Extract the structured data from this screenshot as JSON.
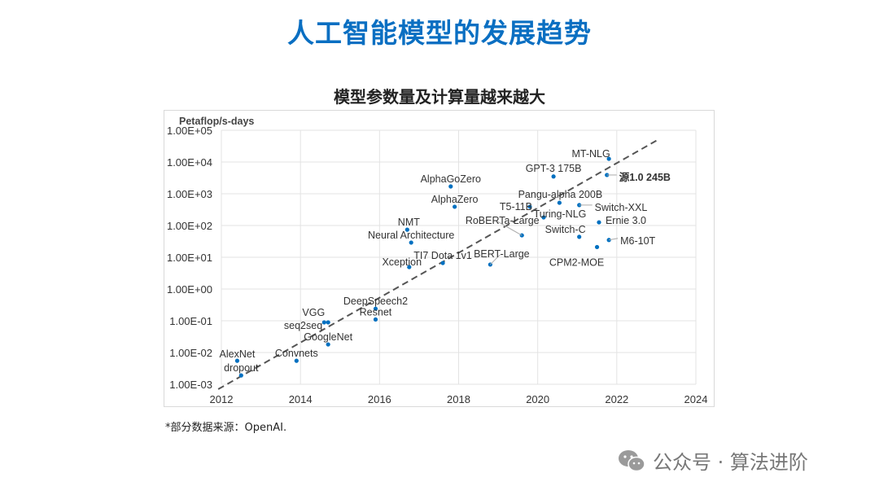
{
  "title": "人工智能模型的发展趋势",
  "chart_data": {
    "type": "scatter",
    "title": "模型参数量及计算量越来越大",
    "ylabel": "Petaflop/s-days",
    "xlabel": "",
    "y_scale": "log",
    "xlim": [
      2012,
      2024
    ],
    "ylim": [
      0.001,
      100000
    ],
    "x_ticks": [
      "2012",
      "2014",
      "2016",
      "2018",
      "2020",
      "2022",
      "2024"
    ],
    "y_ticks": [
      "1.00E-03",
      "1.00E-02",
      "1.00E-01",
      "1.00E+00",
      "1.00E+01",
      "1.00E+02",
      "1.00E+03",
      "1.00E+04",
      "1.00E+05"
    ],
    "grid": true,
    "point_color": "#0070c0",
    "trendline": {
      "style": "dashed",
      "color": "#555555",
      "x": [
        2011.92,
        2023.0
      ],
      "y": [
        0.0007,
        47000
      ]
    },
    "points": [
      {
        "label": "AlexNet",
        "x": 2012.4,
        "y": 0.0055
      },
      {
        "label": "dropout",
        "x": 2012.5,
        "y": 0.0019
      },
      {
        "label": "Convnets",
        "x": 2013.9,
        "y": 0.0055
      },
      {
        "label": "VGG",
        "x": 2014.6,
        "y": 0.089
      },
      {
        "label": "seq2seq",
        "x": 2014.7,
        "y": 0.089
      },
      {
        "label": "GoogleNet",
        "x": 2014.7,
        "y": 0.018
      },
      {
        "label": "DeepSpeech2",
        "x": 2015.9,
        "y": 0.24
      },
      {
        "label": "Resnet",
        "x": 2015.9,
        "y": 0.11
      },
      {
        "label": "AlphaGoZero",
        "x": 2017.8,
        "y": 1700
      },
      {
        "label": "AlphaZero",
        "x": 2017.9,
        "y": 390
      },
      {
        "label": "NMT",
        "x": 2016.7,
        "y": 74
      },
      {
        "label": "Neural Architecture",
        "x": 2016.8,
        "y": 29
      },
      {
        "label": "Xception",
        "x": 2016.75,
        "y": 4.9
      },
      {
        "label": "TI7 Dota 1v1",
        "x": 2017.6,
        "y": 6.6
      },
      {
        "label": "BERT-Large",
        "x": 2018.8,
        "y": 5.9
      },
      {
        "label": "RoBERTa-Large",
        "x": 2019.6,
        "y": 49
      },
      {
        "label": "T5-11B",
        "x": 2019.8,
        "y": 390
      },
      {
        "label": "Turing-NLG",
        "x": 2020.15,
        "y": 180
      },
      {
        "label": "GPT-3 175B",
        "x": 2020.4,
        "y": 3500
      },
      {
        "label": "Pangu-alpha 200B",
        "x": 2020.55,
        "y": 520
      },
      {
        "label": "Switch-XXL",
        "x": 2021.05,
        "y": 440
      },
      {
        "label": "Switch-C",
        "x": 2021.05,
        "y": 44
      },
      {
        "label": "MT-NLG",
        "x": 2021.8,
        "y": 12600
      },
      {
        "label": "源1.0 245B",
        "x": 2021.75,
        "y": 3900
      },
      {
        "label": "Ernie 3.0",
        "x": 2021.55,
        "y": 126
      },
      {
        "label": "M6-10T",
        "x": 2021.8,
        "y": 35
      },
      {
        "label": "CPM2-MOE",
        "x": 2021.5,
        "y": 21
      }
    ]
  },
  "footnote": "*部分数据来源：OpenAI.",
  "watermark": "公众号 · 算法进阶"
}
